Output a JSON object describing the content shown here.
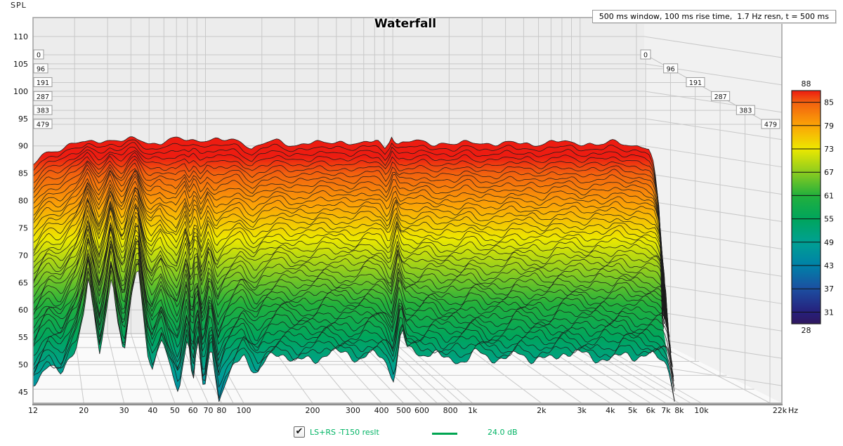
{
  "header": {
    "spl_axis_label": "SPL",
    "title": "Waterfall",
    "info_box": "500 ms window, 100 ms rise time,  1.7 Hz resn, t = 500 ms"
  },
  "legend": {
    "checkbox_checked": true,
    "check_glyph": "✔",
    "trace_label": "LS+RS -T150 reslt",
    "level_label": "24.0 dB",
    "text_color": "#00b464",
    "line_color": "#00a551"
  },
  "chart_data": {
    "type": "waterfall",
    "title": "Waterfall",
    "x_axis": {
      "unit": "Hz",
      "scale": "log",
      "min": 12,
      "max": 22000,
      "ticks": [
        {
          "v": 12,
          "label": "12"
        },
        {
          "v": 20,
          "label": "20"
        },
        {
          "v": 30,
          "label": "30"
        },
        {
          "v": 40,
          "label": "40"
        },
        {
          "v": 50,
          "label": "50"
        },
        {
          "v": 60,
          "label": "60"
        },
        {
          "v": 70,
          "label": "70"
        },
        {
          "v": 80,
          "label": "80"
        },
        {
          "v": 100,
          "label": "100"
        },
        {
          "v": 200,
          "label": "200"
        },
        {
          "v": 300,
          "label": "300"
        },
        {
          "v": 400,
          "label": "400"
        },
        {
          "v": 500,
          "label": "500"
        },
        {
          "v": 600,
          "label": "600"
        },
        {
          "v": 800,
          "label": "800"
        },
        {
          "v": 1000,
          "label": "1k"
        },
        {
          "v": 2000,
          "label": "2k"
        },
        {
          "v": 3000,
          "label": "3k"
        },
        {
          "v": 4000,
          "label": "4k"
        },
        {
          "v": 5000,
          "label": "5k"
        },
        {
          "v": 6000,
          "label": "6k"
        },
        {
          "v": 7000,
          "label": "7k"
        },
        {
          "v": 8000,
          "label": "8k"
        },
        {
          "v": 10000,
          "label": "10k"
        },
        {
          "v": 22000,
          "label": "22k"
        }
      ],
      "unit_suffix": "Hz"
    },
    "y_axis": {
      "label": "SPL",
      "unit": "dB",
      "tick_min": 45,
      "tick_max": 110,
      "tick_step": 5
    },
    "time_axis": {
      "unit": "ms",
      "window_ms": 500,
      "slice_labels_ms": [
        0,
        96,
        191,
        287,
        383,
        479
      ]
    },
    "color_scale": {
      "top_label": "88",
      "bottom_label": "28",
      "side_labels": [
        85,
        79,
        73,
        67,
        61,
        55,
        49,
        43,
        37,
        31
      ],
      "palette": [
        [
          88,
          "#ed1c11"
        ],
        [
          85,
          "#f2600f"
        ],
        [
          79,
          "#fba406"
        ],
        [
          73,
          "#ede800"
        ],
        [
          67,
          "#8ccc1f"
        ],
        [
          61,
          "#22b03c"
        ],
        [
          55,
          "#00a55c"
        ],
        [
          49,
          "#00a092"
        ],
        [
          43,
          "#0081a8"
        ],
        [
          37,
          "#1c4fa1"
        ],
        [
          31,
          "#26207c"
        ],
        [
          28,
          "#2f175e"
        ]
      ]
    },
    "surface": {
      "n_slices": 42,
      "time_span_ms": 500,
      "high_cut_hz": 8000,
      "response_t0_db": [
        [
          12,
          86
        ],
        [
          13,
          87.8
        ],
        [
          14,
          88.8
        ],
        [
          15,
          89.4
        ],
        [
          16,
          89.8
        ],
        [
          18,
          90.3
        ],
        [
          20,
          90.6
        ],
        [
          24,
          90.9
        ],
        [
          28,
          91
        ],
        [
          34,
          91.1
        ],
        [
          40,
          90.7
        ],
        [
          46,
          90.9
        ],
        [
          55,
          91
        ],
        [
          65,
          91.1
        ],
        [
          80,
          91.2
        ],
        [
          95,
          91
        ],
        [
          110,
          90.2
        ],
        [
          115,
          89.7
        ],
        [
          125,
          90.3
        ],
        [
          140,
          90.6
        ],
        [
          170,
          90.4
        ],
        [
          200,
          90.6
        ],
        [
          240,
          90.4
        ],
        [
          300,
          90.7
        ],
        [
          360,
          90.5
        ],
        [
          420,
          90.8
        ],
        [
          455,
          89.6
        ],
        [
          480,
          91.3
        ],
        [
          490,
          92.4
        ],
        [
          500,
          91.5
        ],
        [
          520,
          90.7
        ],
        [
          560,
          90.4
        ],
        [
          640,
          90.7
        ],
        [
          720,
          90.4
        ],
        [
          800,
          90.7
        ],
        [
          900,
          90.4
        ],
        [
          1000,
          90.6
        ],
        [
          1200,
          90.3
        ],
        [
          1400,
          90.6
        ],
        [
          1700,
          90.3
        ],
        [
          2000,
          90.6
        ],
        [
          2400,
          90.4
        ],
        [
          2800,
          90.7
        ],
        [
          3300,
          90.4
        ],
        [
          3800,
          90.6
        ],
        [
          4400,
          90.3
        ],
        [
          5000,
          90.6
        ],
        [
          5600,
          90.3
        ],
        [
          6200,
          90.2
        ],
        [
          6600,
          89.8
        ],
        [
          7000,
          88.8
        ],
        [
          7300,
          86.5
        ],
        [
          7600,
          82
        ],
        [
          7800,
          74
        ],
        [
          7950,
          64
        ],
        [
          8000,
          58
        ]
      ],
      "decay_db_at_500ms": [
        [
          12,
          33
        ],
        [
          14,
          31
        ],
        [
          16,
          33.5
        ],
        [
          18.5,
          29
        ],
        [
          20,
          23
        ],
        [
          21,
          17
        ],
        [
          22,
          24
        ],
        [
          23.5,
          31.5
        ],
        [
          25,
          24
        ],
        [
          26.5,
          16
        ],
        [
          28,
          25
        ],
        [
          30,
          31.5
        ],
        [
          32,
          23
        ],
        [
          34.5,
          15
        ],
        [
          36.5,
          24
        ],
        [
          38,
          30
        ],
        [
          40,
          33
        ],
        [
          44,
          28
        ],
        [
          47,
          33
        ],
        [
          52,
          39
        ],
        [
          57,
          27.5
        ],
        [
          60,
          38
        ],
        [
          63,
          29
        ],
        [
          67,
          39
        ],
        [
          72,
          28.5
        ],
        [
          78,
          40
        ],
        [
          84,
          36
        ],
        [
          90,
          34
        ],
        [
          95,
          33
        ],
        [
          100,
          31.3
        ],
        [
          115,
          33.5
        ],
        [
          130,
          31.8
        ],
        [
          160,
          31.2
        ],
        [
          200,
          31.6
        ],
        [
          250,
          31
        ],
        [
          300,
          31.5
        ],
        [
          350,
          31
        ],
        [
          400,
          31.4
        ],
        [
          455,
          34.5
        ],
        [
          490,
          27
        ],
        [
          520,
          30.5
        ],
        [
          600,
          31.5
        ],
        [
          700,
          31
        ],
        [
          800,
          31.6
        ],
        [
          1000,
          31.2
        ],
        [
          1300,
          31.8
        ],
        [
          1600,
          31
        ],
        [
          2000,
          31.5
        ],
        [
          2500,
          31
        ],
        [
          3000,
          31.6
        ],
        [
          3500,
          31
        ],
        [
          4000,
          31.4
        ],
        [
          4500,
          31
        ],
        [
          5000,
          31.5
        ],
        [
          5500,
          31
        ],
        [
          6000,
          31.3
        ],
        [
          6500,
          31
        ],
        [
          7000,
          31
        ],
        [
          7500,
          30.5
        ],
        [
          8000,
          30
        ]
      ]
    }
  }
}
